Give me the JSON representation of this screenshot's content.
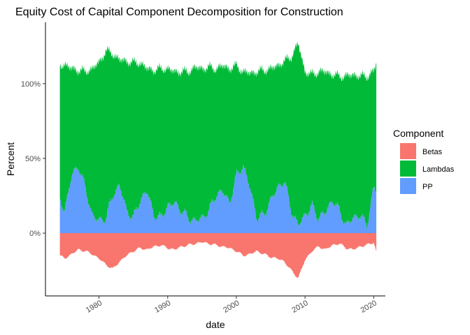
{
  "chart_data": {
    "type": "area",
    "stacked": true,
    "title": "Equity Cost of Capital Component Decomposition for Construction",
    "xlabel": "date",
    "ylabel": "Percent",
    "xlim": [
      1972.2,
      2021.7
    ],
    "ylim": [
      -0.42,
      1.41
    ],
    "x_ticks": [
      1980,
      1990,
      2000,
      2010,
      2020
    ],
    "x_tick_labels": [
      "1980",
      "1990",
      "2000",
      "2010",
      "2020"
    ],
    "y_ticks": [
      0,
      0.5,
      1.0
    ],
    "y_tick_labels": [
      "0%",
      "50%",
      "100%"
    ],
    "grid": false,
    "legend": {
      "title": "Component",
      "position": "right",
      "entries": [
        {
          "name": "Betas",
          "color": "#F8766D"
        },
        {
          "name": "Lambdas",
          "color": "#00BA38"
        },
        {
          "name": "PP",
          "color": "#619CFF"
        }
      ]
    },
    "x": [
      1974.3,
      1975,
      1976,
      1977,
      1978,
      1979,
      1980,
      1981,
      1982,
      1983,
      1984,
      1985,
      1986,
      1987,
      1988,
      1989,
      1990,
      1991,
      1992,
      1993,
      1994,
      1995,
      1996,
      1997,
      1998,
      1999,
      2000,
      2001,
      2002,
      2003,
      2004,
      2005,
      2006,
      2007,
      2008,
      2009,
      2010,
      2011,
      2012,
      2013,
      2014,
      2015,
      2016,
      2017,
      2018,
      2019,
      2020,
      2020.4
    ],
    "series": [
      {
        "name": "Betas",
        "color": "#F8766D",
        "values": [
          -0.15,
          -0.17,
          -0.14,
          -0.11,
          -0.12,
          -0.14,
          -0.17,
          -0.21,
          -0.24,
          -0.19,
          -0.15,
          -0.12,
          -0.1,
          -0.11,
          -0.09,
          -0.08,
          -0.1,
          -0.11,
          -0.09,
          -0.08,
          -0.07,
          -0.06,
          -0.07,
          -0.08,
          -0.09,
          -0.1,
          -0.12,
          -0.15,
          -0.14,
          -0.12,
          -0.14,
          -0.16,
          -0.17,
          -0.19,
          -0.25,
          -0.3,
          -0.18,
          -0.12,
          -0.09,
          -0.11,
          -0.08,
          -0.07,
          -0.1,
          -0.11,
          -0.09,
          -0.08,
          -0.06,
          -0.13
        ]
      },
      {
        "name": "PP",
        "color": "#619CFF",
        "values": [
          0.22,
          0.15,
          0.38,
          0.45,
          0.3,
          0.12,
          0.08,
          0.1,
          0.25,
          0.32,
          0.15,
          0.1,
          0.22,
          0.28,
          0.12,
          0.1,
          0.18,
          0.2,
          0.15,
          0.1,
          0.08,
          0.1,
          0.15,
          0.25,
          0.28,
          0.2,
          0.38,
          0.45,
          0.3,
          0.1,
          0.12,
          0.22,
          0.3,
          0.35,
          0.15,
          0.05,
          0.12,
          0.18,
          0.1,
          0.14,
          0.22,
          0.15,
          0.05,
          0.1,
          0.12,
          0.05,
          0.3,
          0.28
        ]
      },
      {
        "name": "Lambdas",
        "color": "#00BA38",
        "values": [
          0.9,
          0.98,
          0.72,
          0.64,
          0.78,
          0.98,
          1.06,
          1.12,
          0.95,
          0.84,
          1.0,
          1.04,
          0.92,
          0.82,
          0.97,
          1.0,
          0.92,
          0.88,
          0.93,
          0.98,
          1.03,
          1.0,
          0.96,
          0.85,
          0.84,
          0.9,
          0.74,
          0.63,
          0.77,
          0.98,
          0.97,
          0.88,
          0.82,
          0.8,
          1.03,
          1.22,
          0.96,
          0.88,
          0.98,
          0.94,
          0.84,
          0.9,
          1.0,
          0.96,
          0.93,
          1.0,
          0.78,
          0.86
        ]
      }
    ]
  }
}
